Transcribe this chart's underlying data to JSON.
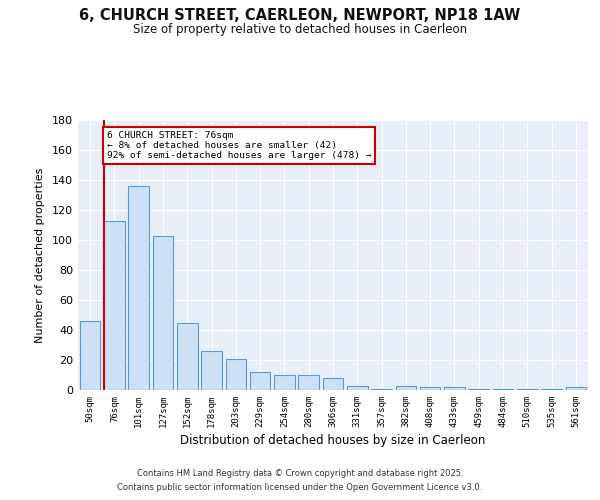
{
  "title": "6, CHURCH STREET, CAERLEON, NEWPORT, NP18 1AW",
  "subtitle": "Size of property relative to detached houses in Caerleon",
  "xlabel": "Distribution of detached houses by size in Caerleon",
  "ylabel": "Number of detached properties",
  "categories": [
    "50sqm",
    "76sqm",
    "101sqm",
    "127sqm",
    "152sqm",
    "178sqm",
    "203sqm",
    "229sqm",
    "254sqm",
    "280sqm",
    "306sqm",
    "331sqm",
    "357sqm",
    "382sqm",
    "408sqm",
    "433sqm",
    "459sqm",
    "484sqm",
    "510sqm",
    "535sqm",
    "561sqm"
  ],
  "values": [
    46,
    113,
    136,
    103,
    45,
    26,
    21,
    12,
    10,
    10,
    8,
    3,
    1,
    3,
    2,
    2,
    1,
    1,
    1,
    1,
    2
  ],
  "bar_color": "#cde0f5",
  "bar_edge_color": "#5b9bd5",
  "highlight_index": 1,
  "highlight_line_color": "#cc0000",
  "annotation_line1": "6 CHURCH STREET: 76sqm",
  "annotation_line2": "← 8% of detached houses are smaller (42)",
  "annotation_line3": "92% of semi-detached houses are larger (478) →",
  "annotation_box_color": "#ffffff",
  "annotation_box_edge_color": "#cc0000",
  "ylim": [
    0,
    180
  ],
  "yticks": [
    0,
    20,
    40,
    60,
    80,
    100,
    120,
    140,
    160,
    180
  ],
  "plot_bg_color": "#e8eef8",
  "fig_bg_color": "#ffffff",
  "footer_line1": "Contains HM Land Registry data © Crown copyright and database right 2025.",
  "footer_line2": "Contains public sector information licensed under the Open Government Licence v3.0."
}
